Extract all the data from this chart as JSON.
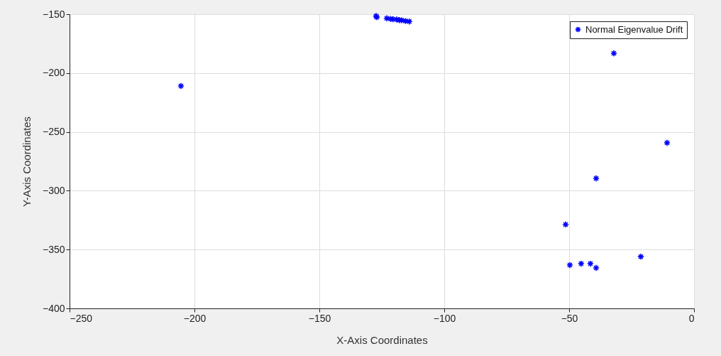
{
  "chart_data": {
    "type": "scatter",
    "xlabel": "X-Axis Coordinates",
    "ylabel": "Y-Axis Coordinates",
    "series": [
      {
        "name": "Normal Eigenvalue Drift",
        "color": "#0000ff",
        "x": [
          -205.4,
          -127.3,
          -127,
          -123,
          -121.5,
          -120.5,
          -119,
          -118,
          -117,
          -115.5,
          -114,
          -32.1,
          -10.8,
          -39.2,
          -51.4,
          -49.7,
          -45.2,
          -41.5,
          -39.2,
          -21.3
        ],
        "values": [
          -211,
          -151.5,
          -152.5,
          -153.5,
          -154,
          -154.2,
          -154.5,
          -155,
          -155.2,
          -155.8,
          -156.2,
          -183.2,
          -259.3,
          -289.5,
          -328.7,
          -363.2,
          -362,
          -362,
          -365.6,
          -356
        ]
      }
    ],
    "xlim": [
      -250,
      0
    ],
    "xticks": [
      -250,
      -200,
      -150,
      -100,
      -50,
      0
    ],
    "ylim": [
      -400,
      -150
    ],
    "yticks": [
      -400,
      -350,
      -300,
      -250,
      -200,
      -150
    ],
    "grid": true,
    "legend": "top right",
    "marker": "cross"
  }
}
